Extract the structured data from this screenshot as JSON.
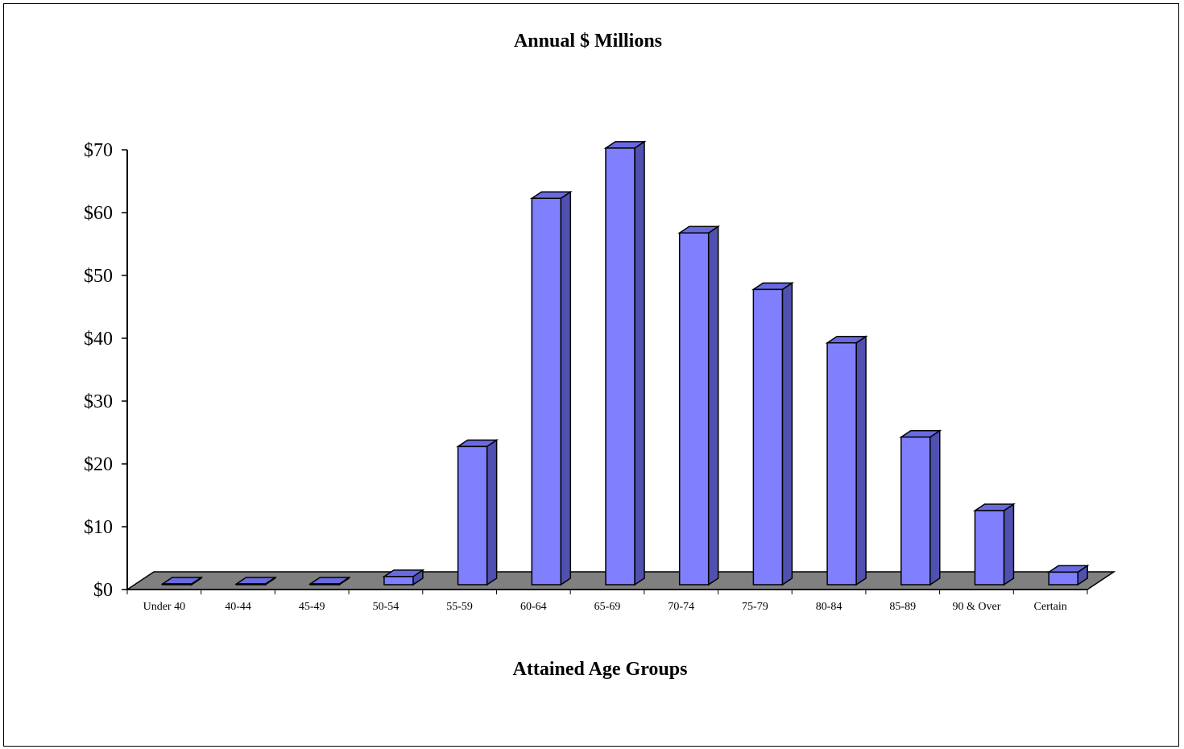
{
  "chart_data": {
    "type": "bar",
    "title": "Annual $ Millions",
    "xlabel": "Attained Age Groups",
    "ylabel": "",
    "categories": [
      "Under 40",
      "40-44",
      "45-49",
      "50-54",
      "55-59",
      "60-64",
      "65-69",
      "70-74",
      "75-79",
      "80-84",
      "85-89",
      "90 & Over",
      "Certain"
    ],
    "values": [
      0.1,
      0.1,
      0.1,
      1.3,
      22,
      61.5,
      69.5,
      56,
      47,
      38.5,
      23.5,
      11.8,
      2
    ],
    "ylim": [
      0,
      70
    ],
    "yticks": [
      "$0",
      "$10",
      "$20",
      "$30",
      "$40",
      "$50",
      "$60",
      "$70"
    ],
    "ytick_values": [
      0,
      10,
      20,
      30,
      40,
      50,
      60,
      70
    ],
    "grid": false,
    "legend": "none",
    "colors": {
      "bar_front": "#8080ff",
      "bar_side": "#5050b0",
      "bar_top": "#6a6ae0",
      "floor": "#808080"
    }
  }
}
